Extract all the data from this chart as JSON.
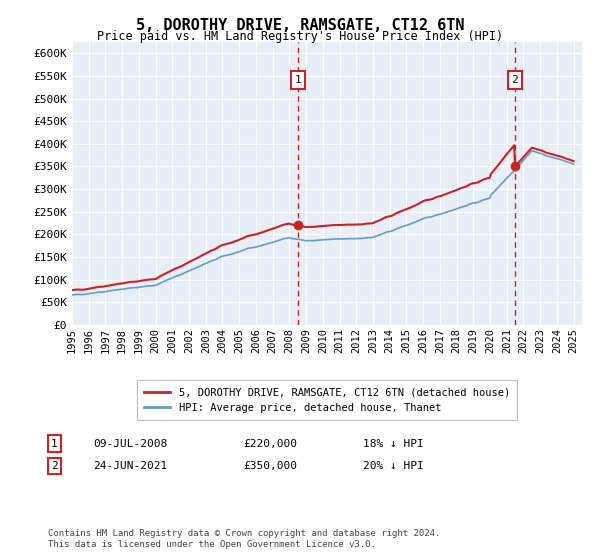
{
  "title": "5, DOROTHY DRIVE, RAMSGATE, CT12 6TN",
  "subtitle": "Price paid vs. HM Land Registry's House Price Index (HPI)",
  "ytick_values": [
    0,
    50000,
    100000,
    150000,
    200000,
    250000,
    300000,
    350000,
    400000,
    450000,
    500000,
    550000,
    600000
  ],
  "ylim": [
    0,
    625000
  ],
  "xlim_start": 1995.0,
  "xlim_end": 2025.5,
  "xtick_years": [
    1995,
    1996,
    1997,
    1998,
    1999,
    2000,
    2001,
    2002,
    2003,
    2004,
    2005,
    2006,
    2007,
    2008,
    2009,
    2010,
    2011,
    2012,
    2013,
    2014,
    2015,
    2016,
    2017,
    2018,
    2019,
    2020,
    2021,
    2022,
    2023,
    2024,
    2025
  ],
  "hpi_color": "#6699cc",
  "price_color": "#cc2222",
  "bg_color": "#e8eef8",
  "grid_color": "#ffffff",
  "sale1_date": 2008.52,
  "sale1_price": 220000,
  "sale2_date": 2021.48,
  "sale2_price": 350000,
  "legend_label1": "5, DOROTHY DRIVE, RAMSGATE, CT12 6TN (detached house)",
  "legend_label2": "HPI: Average price, detached house, Thanet",
  "annotation1_date": "09-JUL-2008",
  "annotation1_price": "£220,000",
  "annotation1_hpi": "18% ↓ HPI",
  "annotation2_date": "24-JUN-2021",
  "annotation2_price": "£350,000",
  "annotation2_hpi": "20% ↓ HPI",
  "footer": "Contains HM Land Registry data © Crown copyright and database right 2024.\nThis data is licensed under the Open Government Licence v3.0."
}
